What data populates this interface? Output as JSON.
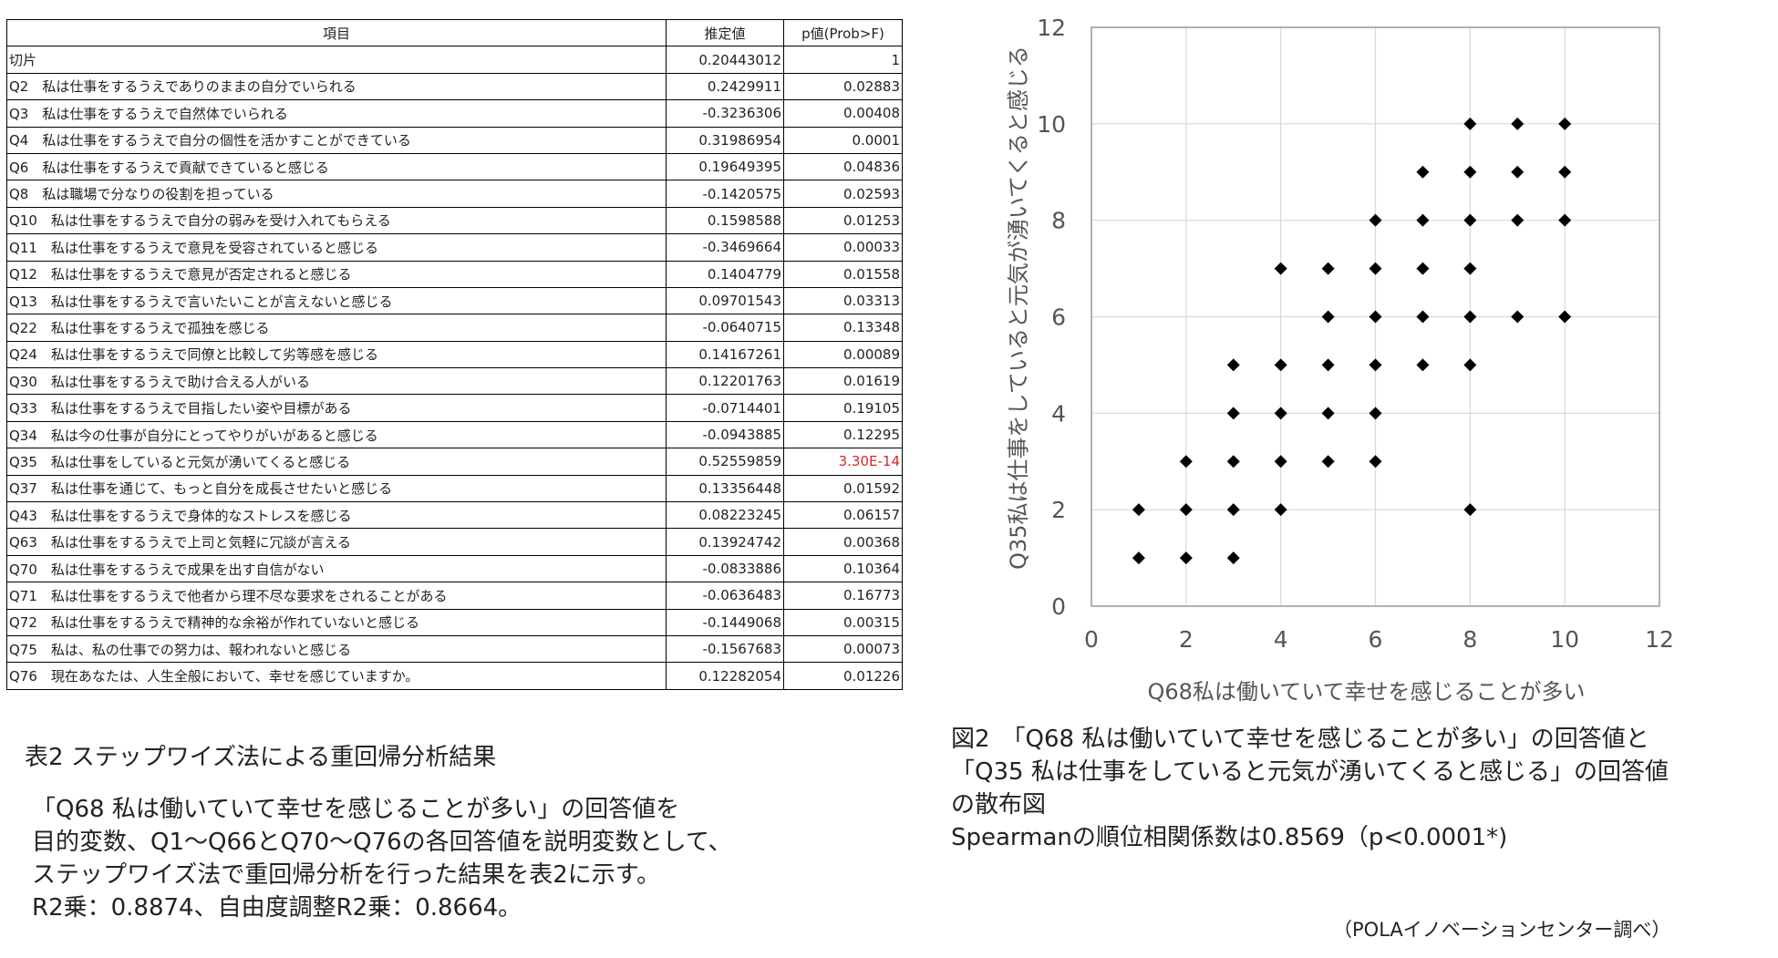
{
  "table": {
    "headers": [
      "項目",
      "推定値",
      "p値(Prob>F)"
    ],
    "rows": [
      {
        "item": "切片",
        "estimate": "0.20443012",
        "p": "1"
      },
      {
        "item": "Q2　私は仕事をするうえでありのままの自分でいられる",
        "estimate": "0.2429911",
        "p": "0.02883"
      },
      {
        "item": "Q3　私は仕事をするうえで自然体でいられる",
        "estimate": "-0.3236306",
        "p": "0.00408"
      },
      {
        "item": "Q4　私は仕事をするうえで自分の個性を活かすことができている",
        "estimate": "0.31986954",
        "p": "0.0001"
      },
      {
        "item": "Q6　私は仕事をするうえで貢献できていると感じる",
        "estimate": "0.19649395",
        "p": "0.04836"
      },
      {
        "item": "Q8　私は職場で分なりの役割を担っている",
        "estimate": "-0.1420575",
        "p": "0.02593"
      },
      {
        "item": "Q10　私は仕事をするうえで自分の弱みを受け入れてもらえる",
        "estimate": "0.1598588",
        "p": "0.01253"
      },
      {
        "item": "Q11　私は仕事をするうえで意見を受容されていると感じる",
        "estimate": "-0.3469664",
        "p": "0.00033"
      },
      {
        "item": "Q12　私は仕事をするうえで意見が否定されると感じる",
        "estimate": "0.1404779",
        "p": "0.01558"
      },
      {
        "item": "Q13　私は仕事をするうえで言いたいことが言えないと感じる",
        "estimate": "0.09701543",
        "p": "0.03313"
      },
      {
        "item": "Q22　私は仕事をするうえで孤独を感じる",
        "estimate": "-0.0640715",
        "p": "0.13348"
      },
      {
        "item": "Q24　私は仕事をするうえで同僚と比較して劣等感を感じる",
        "estimate": "0.14167261",
        "p": "0.00089"
      },
      {
        "item": "Q30　私は仕事をするうえで助け合える人がいる",
        "estimate": "0.12201763",
        "p": "0.01619"
      },
      {
        "item": "Q33　私は仕事をするうえで目指したい姿や目標がある",
        "estimate": "-0.0714401",
        "p": "0.19105"
      },
      {
        "item": "Q34　私は今の仕事が自分にとってやりがいがあると感じる",
        "estimate": "-0.0943885",
        "p": "0.12295"
      },
      {
        "item": "Q35　私は仕事をしていると元気が湧いてくると感じる",
        "estimate": "0.52559859",
        "p": "3.30E-14",
        "highlight": true
      },
      {
        "item": "Q37　私は仕事を通じて、もっと自分を成長させたいと感じる",
        "estimate": "0.13356448",
        "p": "0.01592"
      },
      {
        "item": "Q43　私は仕事をするうえで身体的なストレスを感じる",
        "estimate": "0.08223245",
        "p": "0.06157"
      },
      {
        "item": "Q63　私は仕事をするうえで上司と気軽に冗談が言える",
        "estimate": "0.13924742",
        "p": "0.00368"
      },
      {
        "item": "Q70　私は仕事をするうえで成果を出す自信がない",
        "estimate": "-0.0833886",
        "p": "0.10364"
      },
      {
        "item": "Q71　私は仕事をするうえで他者から理不尽な要求をされることがある",
        "estimate": "-0.0636483",
        "p": "0.16773"
      },
      {
        "item": "Q72　私は仕事をするうえで精神的な余裕が作れていないと感じる",
        "estimate": "-0.1449068",
        "p": "0.00315"
      },
      {
        "item": "Q75　私は、私の仕事での努力は、報われないと感じる",
        "estimate": "-0.1567683",
        "p": "0.00073"
      },
      {
        "item": "Q76　現在あなたは、人生全般において、幸せを感じていますか。",
        "estimate": "0.12282054",
        "p": "0.01226"
      }
    ],
    "highlight_color": "#d9262a"
  },
  "table_caption": "表2 ステップワイズ法による重回帰分析結果",
  "table_description": [
    "「Q68 私は働いていて幸せを感じることが多い」の回答値を",
    "目的変数、Q1～Q66とQ70～Q76の各回答値を説明変数として、",
    "ステップワイズ法で重回帰分析を行った結果を表2に示す。",
    "R2乗：0.8874、自由度調整R2乗：0.8664。"
  ],
  "figure_caption": [
    "図2　「Q68 私は働いていて幸せを感じることが多い」の回答値と",
    "「Q35 私は仕事をしていると元気が湧いてくると感じる」の回答値",
    "の散布図",
    "Spearmanの順位相関係数は0.8569（p<0.0001*)"
  ],
  "source_note": "（POLAイノベーションセンター調べ）",
  "chart_data": {
    "type": "scatter",
    "title": "",
    "xlabel": "Q68私は働いていて幸せを感じることが多い",
    "ylabel": "Q35私は仕事をしていると元気が湧いてくると感じる",
    "xlim": [
      0,
      12
    ],
    "ylim": [
      0,
      12
    ],
    "xticks": [
      0,
      2,
      4,
      6,
      8,
      10,
      12
    ],
    "yticks": [
      0,
      2,
      4,
      6,
      8,
      10,
      12
    ],
    "grid": true,
    "marker": "diamond",
    "marker_color": "#000000",
    "points": [
      [
        1,
        1
      ],
      [
        1,
        2
      ],
      [
        2,
        1
      ],
      [
        2,
        2
      ],
      [
        2,
        3
      ],
      [
        3,
        1
      ],
      [
        3,
        2
      ],
      [
        3,
        3
      ],
      [
        3,
        4
      ],
      [
        3,
        5
      ],
      [
        4,
        2
      ],
      [
        4,
        3
      ],
      [
        4,
        4
      ],
      [
        4,
        5
      ],
      [
        4,
        7
      ],
      [
        5,
        3
      ],
      [
        5,
        4
      ],
      [
        5,
        5
      ],
      [
        5,
        6
      ],
      [
        5,
        7
      ],
      [
        6,
        3
      ],
      [
        6,
        4
      ],
      [
        6,
        5
      ],
      [
        6,
        6
      ],
      [
        6,
        7
      ],
      [
        6,
        8
      ],
      [
        7,
        5
      ],
      [
        7,
        6
      ],
      [
        7,
        7
      ],
      [
        7,
        8
      ],
      [
        7,
        9
      ],
      [
        8,
        2
      ],
      [
        8,
        5
      ],
      [
        8,
        6
      ],
      [
        8,
        7
      ],
      [
        8,
        8
      ],
      [
        8,
        9
      ],
      [
        8,
        10
      ],
      [
        9,
        6
      ],
      [
        9,
        8
      ],
      [
        9,
        9
      ],
      [
        9,
        10
      ],
      [
        10,
        6
      ],
      [
        10,
        8
      ],
      [
        10,
        9
      ],
      [
        10,
        10
      ]
    ]
  }
}
